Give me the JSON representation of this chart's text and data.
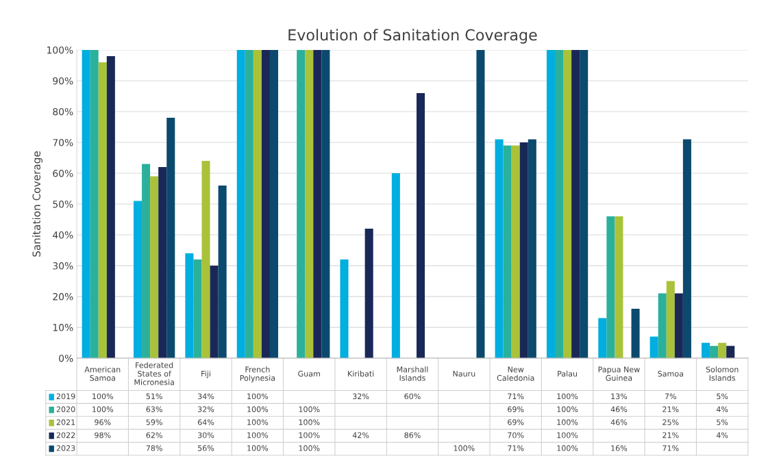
{
  "chart_data": {
    "type": "bar",
    "title": "Evolution of Sanitation Coverage",
    "ylabel": "Sanitation Coverage",
    "categories": [
      "American Samoa",
      "Federated States of Micronesia",
      "Fiji",
      "French Polynesia",
      "Guam",
      "Kiribati",
      "Marshall Islands",
      "Nauru",
      "New Caledonia",
      "Palau",
      "Papua New Guinea",
      "Samoa",
      "Solomon Islands"
    ],
    "series": [
      {
        "name": "2019",
        "color": "#00aee0",
        "values": [
          100,
          51,
          34,
          100,
          null,
          32,
          60,
          null,
          71,
          100,
          13,
          7,
          5
        ],
        "value_labels": [
          "100%",
          "51%",
          "34%",
          "100%",
          null,
          "32%",
          "60%",
          null,
          "71%",
          "100%",
          "13%",
          "7%",
          "5%"
        ]
      },
      {
        "name": "2020",
        "color": "#2bb09c",
        "values": [
          100,
          63,
          32,
          100,
          100,
          null,
          null,
          null,
          69,
          100,
          46,
          21,
          4
        ],
        "value_labels": [
          "100%",
          "63%",
          "32%",
          "100%",
          "100%",
          null,
          null,
          null,
          "69%",
          "100%",
          "46%",
          "21%",
          "4%"
        ]
      },
      {
        "name": "2021",
        "color": "#a9c23a",
        "values": [
          96,
          59,
          64,
          100,
          100,
          null,
          null,
          null,
          69,
          100,
          46,
          25,
          5
        ],
        "value_labels": [
          "96%",
          "59%",
          "64%",
          "100%",
          "100%",
          null,
          null,
          null,
          "69%",
          "100%",
          "46%",
          "25%",
          "5%"
        ]
      },
      {
        "name": "2022",
        "color": "#1a2857",
        "values": [
          98,
          62,
          30,
          100,
          100,
          42,
          86,
          null,
          70,
          100,
          null,
          21,
          4
        ],
        "value_labels": [
          "98%",
          "62%",
          "30%",
          "100%",
          "100%",
          "42%",
          "86%",
          null,
          "70%",
          "100%",
          null,
          "21%",
          "4%"
        ]
      },
      {
        "name": "2023",
        "color": "#0b4a6e",
        "values": [
          null,
          78,
          56,
          100,
          100,
          null,
          null,
          100,
          71,
          100,
          16,
          71,
          null
        ],
        "value_labels": [
          null,
          "78%",
          "56%",
          "100%",
          "100%",
          null,
          null,
          "100%",
          "71%",
          "100%",
          "16%",
          "71%",
          null
        ]
      }
    ],
    "ylim": [
      0,
      100
    ],
    "yticks": [
      {
        "value": 0,
        "label": "0%"
      },
      {
        "value": 10,
        "label": "10%"
      },
      {
        "value": 20,
        "label": "20%"
      },
      {
        "value": 30,
        "label": "30%"
      },
      {
        "value": 40,
        "label": "40%"
      },
      {
        "value": 50,
        "label": "50%"
      },
      {
        "value": 60,
        "label": "60%"
      },
      {
        "value": 70,
        "label": "70%"
      },
      {
        "value": 80,
        "label": "80%"
      },
      {
        "value": 90,
        "label": "90%"
      },
      {
        "value": 100,
        "label": "100%"
      }
    ],
    "grid": "y",
    "legend": "bottom"
  }
}
